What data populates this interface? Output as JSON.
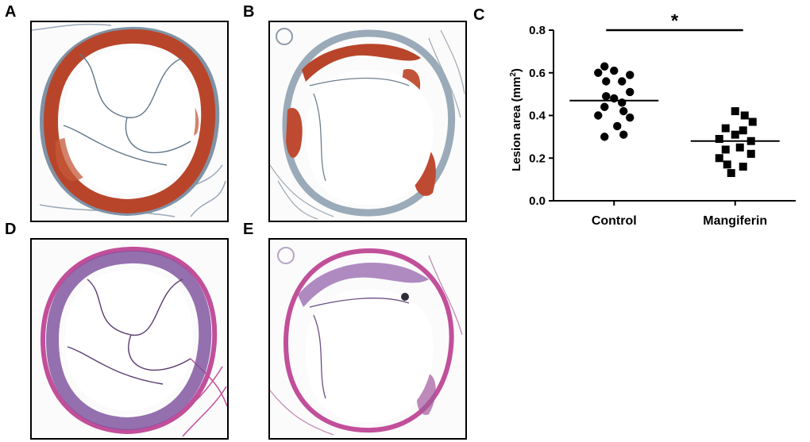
{
  "panels": {
    "a": {
      "letter": "A",
      "stain": "oil-red-o"
    },
    "b": {
      "letter": "B",
      "stain": "oil-red-o"
    },
    "c": {
      "letter": "C"
    },
    "d": {
      "letter": "D",
      "stain": "h-and-e"
    },
    "e": {
      "letter": "E",
      "stain": "h-and-e"
    }
  },
  "colors": {
    "oil_red_lesion": "#b8452a",
    "oil_red_wall": "#7f93a6",
    "he_lesion": "#7a4d9c",
    "he_wall": "#c24f9a",
    "tissue_background": "#fbfbfb",
    "ink": "#000000"
  },
  "chart_data": {
    "type": "scatter",
    "title": "",
    "ylabel": "Lesion area (mm",
    "ylabel_sup": "2",
    "ylabel_close": ")",
    "xlabel": "",
    "ylim": [
      0.0,
      0.8
    ],
    "yticks": [
      0.0,
      0.2,
      0.4,
      0.6,
      0.8
    ],
    "ytick_labels": [
      "0.0",
      "0.2",
      "0.4",
      "0.6",
      "0.8"
    ],
    "categories": [
      "Control",
      "Mangiferin"
    ],
    "series": [
      {
        "name": "Control",
        "marker": "circle",
        "mean": 0.47,
        "points": [
          {
            "dx": -0.12,
            "y": 0.63
          },
          {
            "dx": 0.0,
            "y": 0.61
          },
          {
            "dx": -0.2,
            "y": 0.6
          },
          {
            "dx": 0.2,
            "y": 0.59
          },
          {
            "dx": -0.1,
            "y": 0.56
          },
          {
            "dx": 0.1,
            "y": 0.56
          },
          {
            "dx": 0.2,
            "y": 0.51
          },
          {
            "dx": -0.1,
            "y": 0.49
          },
          {
            "dx": 0.0,
            "y": 0.48
          },
          {
            "dx": 0.1,
            "y": 0.46
          },
          {
            "dx": -0.12,
            "y": 0.44
          },
          {
            "dx": 0.12,
            "y": 0.42
          },
          {
            "dx": -0.2,
            "y": 0.4
          },
          {
            "dx": 0.2,
            "y": 0.39
          },
          {
            "dx": 0.04,
            "y": 0.35
          },
          {
            "dx": 0.12,
            "y": 0.31
          },
          {
            "dx": -0.12,
            "y": 0.3
          }
        ]
      },
      {
        "name": "Mangiferin",
        "marker": "square",
        "mean": 0.28,
        "points": [
          {
            "dx": 0.0,
            "y": 0.42
          },
          {
            "dx": 0.12,
            "y": 0.4
          },
          {
            "dx": 0.22,
            "y": 0.37
          },
          {
            "dx": -0.12,
            "y": 0.34
          },
          {
            "dx": 0.1,
            "y": 0.33
          },
          {
            "dx": 0.0,
            "y": 0.31
          },
          {
            "dx": -0.2,
            "y": 0.29
          },
          {
            "dx": 0.2,
            "y": 0.28
          },
          {
            "dx": 0.06,
            "y": 0.25
          },
          {
            "dx": -0.12,
            "y": 0.24
          },
          {
            "dx": 0.2,
            "y": 0.22
          },
          {
            "dx": -0.2,
            "y": 0.2
          },
          {
            "dx": -0.1,
            "y": 0.17
          },
          {
            "dx": 0.1,
            "y": 0.16
          },
          {
            "dx": -0.05,
            "y": 0.13
          }
        ]
      }
    ],
    "significance": {
      "label": "*",
      "from": "Control",
      "to": "Mangiferin",
      "y": 0.8
    }
  }
}
